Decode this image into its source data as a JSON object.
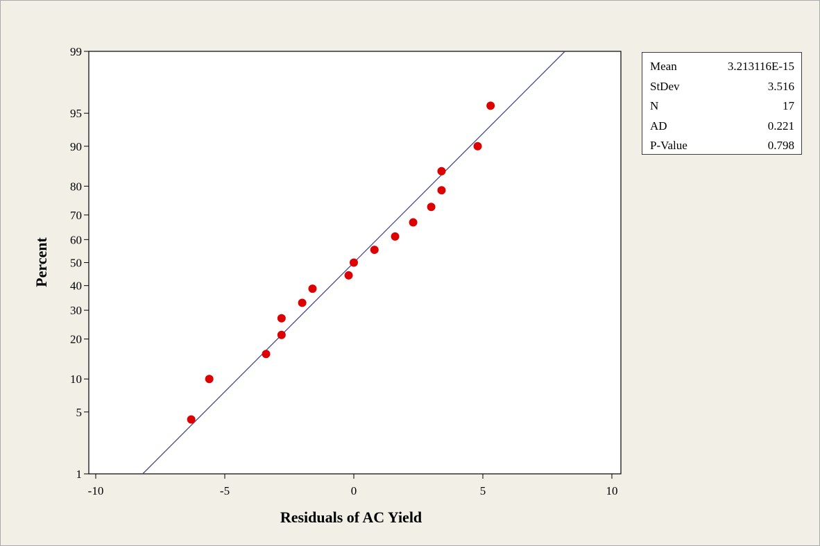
{
  "chart_data": {
    "type": "scatter",
    "subtype": "normal-probability-plot",
    "xlabel": "Residuals of AC Yield",
    "ylabel": "Percent",
    "xlim": [
      -10,
      10
    ],
    "ylim": [
      1,
      99
    ],
    "y_scale": "normal-probability",
    "x_ticks": [
      "-10",
      "-5",
      "0",
      "5",
      "10"
    ],
    "x_tick_values": [
      -10,
      -5,
      0,
      5,
      10
    ],
    "y_ticks": [
      "1",
      "5",
      "10",
      "20",
      "30",
      "40",
      "50",
      "60",
      "70",
      "80",
      "90",
      "95",
      "99"
    ],
    "y_tick_values": [
      1,
      5,
      10,
      20,
      30,
      40,
      50,
      60,
      70,
      80,
      90,
      95,
      99
    ],
    "points": [
      {
        "x": -6.3,
        "y": 4.2
      },
      {
        "x": -5.6,
        "y": 10.0
      },
      {
        "x": -3.4,
        "y": 15.7
      },
      {
        "x": -2.8,
        "y": 21.3
      },
      {
        "x": -2.8,
        "y": 27.0
      },
      {
        "x": -2.0,
        "y": 32.9
      },
      {
        "x": -1.6,
        "y": 38.7
      },
      {
        "x": -0.2,
        "y": 44.4
      },
      {
        "x": 0.0,
        "y": 50.0
      },
      {
        "x": 0.8,
        "y": 55.6
      },
      {
        "x": 1.6,
        "y": 61.3
      },
      {
        "x": 2.3,
        "y": 67.1
      },
      {
        "x": 3.0,
        "y": 73.0
      },
      {
        "x": 3.4,
        "y": 78.7
      },
      {
        "x": 3.4,
        "y": 84.3
      },
      {
        "x": 4.8,
        "y": 90.0
      },
      {
        "x": 5.3,
        "y": 95.8
      }
    ],
    "fit_line": {
      "x_at_1pct": -8.18,
      "x_at_99pct": 8.18
    },
    "colors": {
      "points": "#dd0000",
      "fit_line": "#4a4a8a",
      "plot_bg": "#ffffff",
      "figure_bg": "#f1efe6"
    },
    "grid": false,
    "legend": "stats-table-top-right"
  },
  "stats": [
    {
      "label": "Mean",
      "value": "3.213116E-15"
    },
    {
      "label": "StDev",
      "value": "3.516"
    },
    {
      "label": "N",
      "value": "17"
    },
    {
      "label": "AD",
      "value": "0.221"
    },
    {
      "label": "P-Value",
      "value": "0.798"
    }
  ]
}
